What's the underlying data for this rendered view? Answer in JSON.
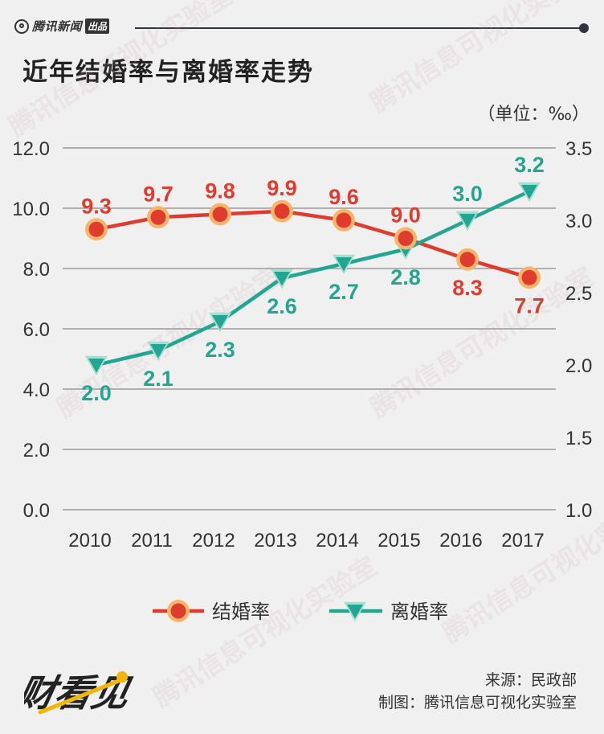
{
  "header": {
    "brand": "腾讯新闻",
    "brand_tag": "出品",
    "title": "近年结婚率与离婚率走势",
    "unit": "（单位：‰）"
  },
  "chart_data": {
    "type": "line",
    "categories": [
      "2010",
      "2011",
      "2012",
      "2013",
      "2014",
      "2015",
      "2016",
      "2017"
    ],
    "y_left": {
      "range": [
        0,
        12
      ],
      "ticks": [
        "0.0",
        "2.0",
        "4.0",
        "6.0",
        "8.0",
        "10.0",
        "12.0"
      ]
    },
    "y_right": {
      "range": [
        1.0,
        3.5
      ],
      "ticks": [
        "1.0",
        "1.5",
        "2.0",
        "2.5",
        "3.0",
        "3.5"
      ]
    },
    "grid": true,
    "legend_position": "bottom",
    "series": [
      {
        "name": "结婚率",
        "axis": "left",
        "values": [
          9.3,
          9.7,
          9.8,
          9.9,
          9.6,
          9.0,
          8.3,
          7.7
        ],
        "labels": [
          "9.3",
          "9.7",
          "9.8",
          "9.9",
          "9.6",
          "9.0",
          "8.3",
          "7.7"
        ],
        "color": "#e03b2f",
        "marker_fill": "#e03b2f",
        "marker_ring": "#f5b66b"
      },
      {
        "name": "离婚率",
        "axis": "right",
        "values": [
          2.0,
          2.1,
          2.3,
          2.6,
          2.7,
          2.8,
          3.0,
          3.2
        ],
        "labels": [
          "2.0",
          "2.1",
          "2.3",
          "2.6",
          "2.7",
          "2.8",
          "3.0",
          "3.2"
        ],
        "color": "#22a691",
        "marker_fill": "#22a691",
        "marker_ring": "#a5ded2"
      }
    ]
  },
  "footer": {
    "source": "来源：民政部",
    "made_by": "制图：腾讯信息可视化实验室",
    "logo_text": "财看见",
    "watermark": "腾讯信息可视化实验室"
  },
  "colors": {
    "background": "#f0f0f0",
    "grid": "#999999",
    "text": "#333333"
  }
}
